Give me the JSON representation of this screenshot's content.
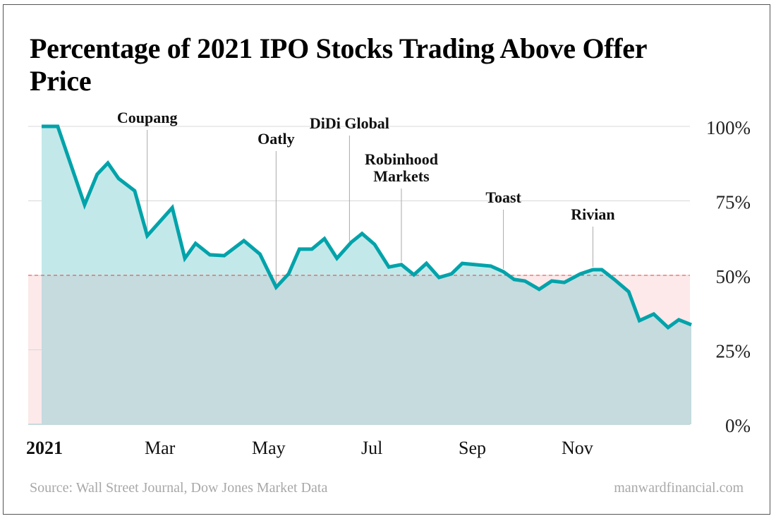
{
  "title": "Percentage of 2021 IPO Stocks Trading Above Offer Price",
  "source": "Source: Wall Street Journal, Dow Jones Market Data",
  "brand": "manwardfinancial.com",
  "colors": {
    "line": "#00A3AA",
    "fill_above": "#C3E8E9",
    "fill_below": "#C5DBDE",
    "below_50_zone": "#FDE9EA",
    "reference_line": "#E8393D"
  },
  "chart_data": {
    "type": "area",
    "title": "Percentage of 2021 IPO Stocks Trading Above Offer Price",
    "xlabel": "",
    "ylabel": "",
    "ylim": [
      0,
      100
    ],
    "xlim": [
      "2021-01-01",
      "2021-12-30"
    ],
    "grid": true,
    "y_ticks": [
      {
        "value": 100,
        "label": "100%"
      },
      {
        "value": 75,
        "label": "75%"
      },
      {
        "value": 50,
        "label": "50%"
      },
      {
        "value": 25,
        "label": "25%"
      },
      {
        "value": 0,
        "label": "0%"
      }
    ],
    "x_ticks": [
      "2021",
      "Mar",
      "May",
      "Jul",
      "Sep",
      "Nov"
    ],
    "reference_line": {
      "value": 50,
      "style": "dashed"
    },
    "series": [
      {
        "x": [
          "2021-01-01",
          "2021-01-10",
          "2021-01-25",
          "2021-02-01",
          "2021-02-07",
          "2021-02-13",
          "2021-02-22",
          "2021-03-01",
          "2021-03-15",
          "2021-03-22",
          "2021-03-28",
          "2021-04-05",
          "2021-04-13",
          "2021-04-24",
          "2021-05-03",
          "2021-05-12",
          "2021-05-19",
          "2021-05-25",
          "2021-06-01",
          "2021-06-08",
          "2021-06-15",
          "2021-06-23",
          "2021-06-29",
          "2021-07-06",
          "2021-07-14",
          "2021-07-21",
          "2021-07-28",
          "2021-08-04",
          "2021-08-11",
          "2021-08-18",
          "2021-08-24",
          "2021-09-09",
          "2021-09-16",
          "2021-09-22",
          "2021-09-28",
          "2021-10-06",
          "2021-10-13",
          "2021-10-20",
          "2021-10-29",
          "2021-11-05",
          "2021-11-10",
          "2021-11-17",
          "2021-11-25",
          "2021-12-01",
          "2021-12-09",
          "2021-12-17",
          "2021-12-23",
          "2021-12-30"
        ],
        "values": [
          100,
          100,
          73.7,
          83.9,
          87.7,
          82.5,
          78.4,
          63.3,
          72.7,
          55.7,
          60.7,
          56.9,
          56.6,
          61.6,
          57.1,
          46.0,
          50.5,
          58.8,
          58.8,
          62.3,
          55.7,
          61.1,
          64.0,
          60.4,
          52.8,
          53.6,
          50.2,
          54.0,
          49.3,
          50.5,
          54.0,
          53.1,
          51.2,
          48.6,
          48.1,
          45.3,
          48.1,
          47.6,
          50.5,
          51.9,
          51.9,
          48.6,
          44.5,
          34.8,
          37.0,
          32.5,
          35.1,
          33.4
        ]
      }
    ],
    "annotations": [
      {
        "label": "Coupang",
        "date": "2021-03-01"
      },
      {
        "label": "Oatly",
        "date": "2021-05-12"
      },
      {
        "label": "DiDi Global",
        "date": "2021-06-22"
      },
      {
        "label": "Robinhood Markets",
        "lines": [
          "Robinhood",
          "Markets"
        ],
        "date": "2021-07-21"
      },
      {
        "label": "Toast",
        "date": "2021-09-16"
      },
      {
        "label": "Rivian",
        "date": "2021-11-05"
      }
    ]
  }
}
